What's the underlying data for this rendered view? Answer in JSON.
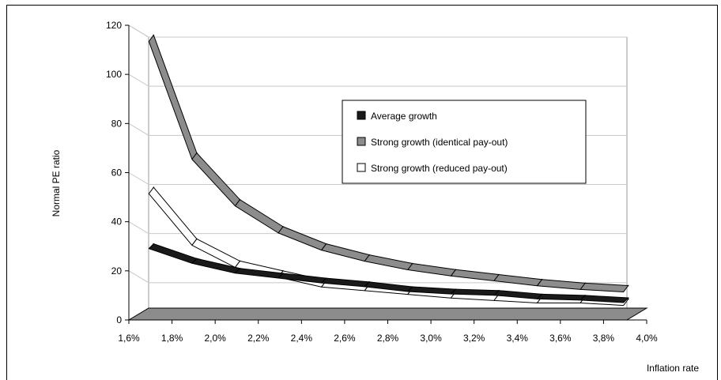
{
  "chart_data": {
    "type": "line",
    "title": "",
    "xlabel": "Inflation rate",
    "ylabel": "Normal PE ratio",
    "x_tick_labels": [
      "1,6%",
      "1,8%",
      "2,0%",
      "2,2%",
      "2,4%",
      "2,6%",
      "2,8%",
      "3,0%",
      "3,2%",
      "3,4%",
      "3,6%",
      "3,8%",
      "4,0%"
    ],
    "y_tick_labels": [
      "0",
      "20",
      "40",
      "60",
      "80",
      "100",
      "120"
    ],
    "ylim": [
      0,
      120
    ],
    "x": [
      1.7,
      1.9,
      2.1,
      2.3,
      2.5,
      2.7,
      2.9,
      3.1,
      3.3,
      3.5,
      3.7,
      3.9
    ],
    "series": [
      {
        "name": "Average growth",
        "color": "#1a1a1a",
        "values": [
          31,
          25,
          21,
          19,
          17,
          15.5,
          13.5,
          12.5,
          12,
          10.5,
          10,
          9
        ]
      },
      {
        "name": "Strong growth (identical pay-out)",
        "color": "#8c8c8c",
        "values": [
          116,
          68,
          49,
          38,
          31,
          26.5,
          23,
          20.5,
          18.5,
          16.5,
          15,
          14
        ]
      },
      {
        "name": "Strong growth (reduced pay-out)",
        "color": "#ffffff",
        "values": [
          54,
          33,
          24,
          20,
          16,
          14.5,
          13,
          11.5,
          10.5,
          9.5,
          9.5,
          8.5
        ]
      }
    ],
    "grid": true,
    "legend_position": "right"
  }
}
